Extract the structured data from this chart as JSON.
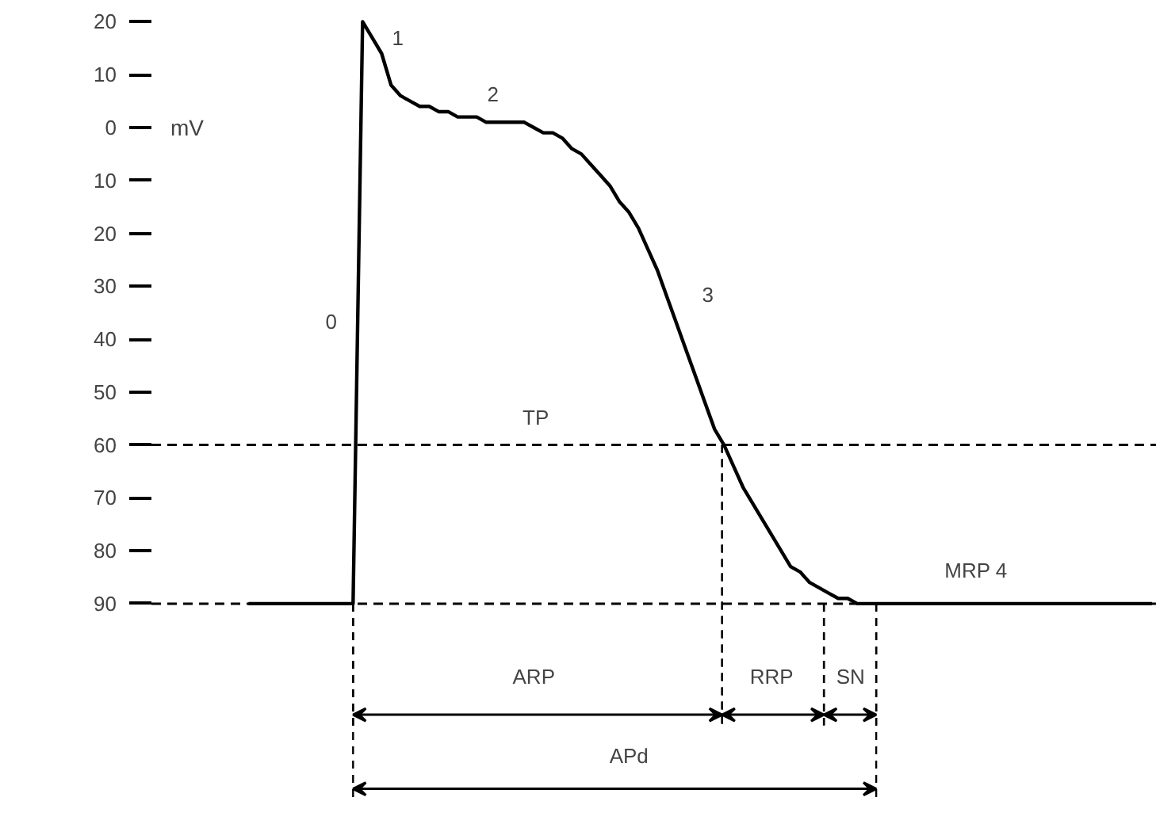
{
  "chart_data": {
    "type": "line",
    "ylabel": "mV",
    "categories": [
      null,
      null,
      null,
      null,
      null,
      null,
      null,
      null,
      null,
      null,
      null,
      null,
      null,
      null,
      null,
      null,
      null,
      null,
      null,
      null,
      null,
      null,
      null,
      null,
      null,
      null,
      null,
      null,
      null,
      null,
      null,
      null,
      null,
      null,
      null,
      null,
      null,
      null,
      null,
      null,
      null,
      null,
      null,
      null,
      null,
      null,
      null,
      null,
      null,
      null,
      null,
      null,
      null,
      null,
      null,
      null,
      null,
      null,
      null,
      null,
      null,
      null,
      null,
      null,
      null,
      null,
      null,
      null,
      null,
      null,
      null,
      null,
      null,
      null,
      null,
      null,
      null,
      null,
      null,
      null,
      null,
      null,
      null,
      null,
      null,
      null,
      null,
      null,
      null,
      null,
      null,
      null,
      null,
      null,
      null,
      null
    ],
    "series": [
      {
        "color": "#000000",
        "values": [
          -90,
          -90,
          -90,
          -90,
          -90,
          -90,
          -90,
          -90,
          -90,
          -90,
          -90,
          -90,
          20,
          17,
          14,
          8,
          6,
          5,
          4,
          4,
          3,
          3,
          2,
          2,
          2,
          1,
          1,
          1,
          1,
          1,
          0,
          -1,
          -1,
          -2,
          -4,
          -5,
          -7,
          -9,
          -11,
          -14,
          -16,
          -19,
          -23,
          -27,
          -32,
          -37,
          -42,
          -47,
          -52,
          -57,
          -60,
          -64,
          -68,
          -71,
          -74,
          -77,
          -80,
          -83,
          -84,
          -86,
          -87,
          -88,
          -89,
          -89,
          -90,
          -90,
          -90,
          -90,
          -90,
          -90,
          -90,
          -90,
          -90,
          -90,
          -90,
          -90,
          -90,
          -90,
          -90,
          -90,
          -90,
          -90,
          -90,
          -90,
          -90,
          -90,
          -90,
          -90,
          -90,
          -90,
          -90,
          -90,
          -90,
          -90,
          -90,
          -90
        ]
      }
    ],
    "ylim": [
      -90,
      20
    ],
    "yticks": [
      {
        "value": 20,
        "label": "20"
      },
      {
        "value": 10,
        "label": "10"
      },
      0,
      {
        "value": -10,
        "label": "10"
      },
      {
        "value": -20,
        "label": "20"
      },
      {
        "value": -30,
        "label": "30"
      },
      {
        "value": -40,
        "label": "40"
      },
      {
        "value": -50,
        "label": "50"
      },
      {
        "value": -60,
        "label": "60"
      },
      {
        "value": -70,
        "label": "70"
      },
      {
        "value": -80,
        "label": "80"
      },
      {
        "value": -90,
        "label": "90"
      }
    ],
    "tick_labels": "y",
    "ref_lines": [
      {
        "axis": "y",
        "value": -60,
        "label": "TP",
        "line_style": "dashed"
      },
      {
        "axis": "y",
        "value": -90,
        "line_style": "dashed"
      }
    ],
    "annotations": [
      "0",
      "1",
      "2",
      "3",
      "MRP 4",
      "ARP",
      "RRP",
      "SN",
      "APd"
    ]
  }
}
